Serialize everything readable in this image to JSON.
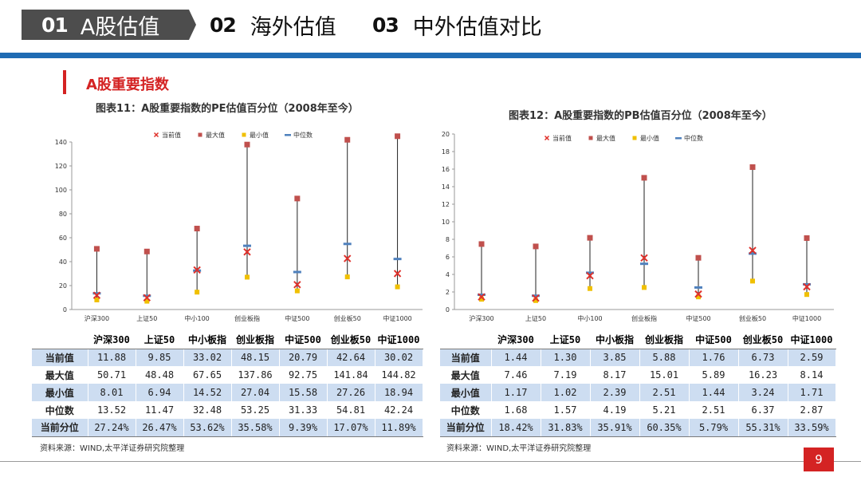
{
  "nav": {
    "items": [
      {
        "num": "01",
        "label": "A股估值"
      },
      {
        "num": "02",
        "label": "海外估值"
      },
      {
        "num": "03",
        "label": "中外估值对比"
      }
    ]
  },
  "section": {
    "title": "A股重要指数"
  },
  "colors": {
    "accent_red": "#d42323",
    "rule_blue": "#1f6bb3",
    "current": "#e0312b",
    "max": "#c0504d",
    "min": "#f0c000",
    "median": "#4f81bd",
    "band": "#cdddf1"
  },
  "legend": [
    "当前值",
    "最大值",
    "最小值",
    "中位数"
  ],
  "row_labels": [
    "当前值",
    "最大值",
    "最小值",
    "中位数",
    "当前分位"
  ],
  "pe": {
    "title": "图表11：A股重要指数的PE估值百分位（2008年至今）",
    "source": "资料来源：WIND,太平洋证券研究院整理",
    "axis_categories": [
      "沪深300",
      "上证50",
      "中小100",
      "创业板指",
      "中证500",
      "创业板50",
      "中证1000"
    ],
    "table_headers": [
      "沪深300",
      "上证50",
      "中小板指",
      "创业板指",
      "中证500",
      "创业板50",
      "中证1000"
    ],
    "table_rows": [
      [
        "11.88",
        "9.85",
        "33.02",
        "48.15",
        "20.79",
        "42.64",
        "30.02"
      ],
      [
        "50.71",
        "48.48",
        "67.65",
        "137.86",
        "92.75",
        "141.84",
        "144.82"
      ],
      [
        "8.01",
        "6.94",
        "14.52",
        "27.04",
        "15.58",
        "27.26",
        "18.94"
      ],
      [
        "13.52",
        "11.47",
        "32.48",
        "53.25",
        "31.33",
        "54.81",
        "42.24"
      ],
      [
        "27.24%",
        "26.47%",
        "53.62%",
        "35.58%",
        "9.39%",
        "17.07%",
        "11.89%"
      ]
    ]
  },
  "pb": {
    "title": "图表12：A股重要指数的PB估值百分位（2008年至今）",
    "source": "资料来源：WIND,太平洋证券研究院整理",
    "axis_categories": [
      "沪深300",
      "上证50",
      "中小100",
      "创业板指",
      "中证500",
      "创业板50",
      "中证1000"
    ],
    "table_headers": [
      "沪深300",
      "上证50",
      "中小板指",
      "创业板指",
      "中证500",
      "创业板50",
      "中证1000"
    ],
    "table_rows": [
      [
        "1.44",
        "1.30",
        "3.85",
        "5.88",
        "1.76",
        "6.73",
        "2.59"
      ],
      [
        "7.46",
        "7.19",
        "8.17",
        "15.01",
        "5.89",
        "16.23",
        "8.14"
      ],
      [
        "1.17",
        "1.02",
        "2.39",
        "2.51",
        "1.44",
        "3.24",
        "1.71"
      ],
      [
        "1.68",
        "1.57",
        "4.19",
        "5.21",
        "2.51",
        "6.37",
        "2.87"
      ],
      [
        "18.42%",
        "31.83%",
        "35.91%",
        "60.35%",
        "5.79%",
        "55.31%",
        "33.59%"
      ]
    ]
  },
  "chart_data": [
    {
      "type": "scatter",
      "title": "图表11：A股重要指数的PE估值百分位（2008年至今）",
      "categories": [
        "沪深300",
        "上证50",
        "中小100",
        "创业板指",
        "中证500",
        "创业板50",
        "中证1000"
      ],
      "series": [
        {
          "name": "当前值",
          "values": [
            11.88,
            9.85,
            33.02,
            48.15,
            20.79,
            42.64,
            30.02
          ]
        },
        {
          "name": "最大值",
          "values": [
            50.71,
            48.48,
            67.65,
            137.86,
            92.75,
            141.84,
            144.82
          ]
        },
        {
          "name": "最小值",
          "values": [
            8.01,
            6.94,
            14.52,
            27.04,
            15.58,
            27.26,
            18.94
          ]
        },
        {
          "name": "中位数",
          "values": [
            13.52,
            11.47,
            32.48,
            53.25,
            31.33,
            54.81,
            42.24
          ]
        }
      ],
      "ylim": [
        0,
        140
      ],
      "yticks": [
        0,
        20,
        40,
        60,
        80,
        100,
        120,
        140
      ],
      "legend_position": "top",
      "grid": false
    },
    {
      "type": "scatter",
      "title": "图表12：A股重要指数的PB估值百分位（2008年至今）",
      "categories": [
        "沪深300",
        "上证50",
        "中小100",
        "创业板指",
        "中证500",
        "创业板50",
        "中证1000"
      ],
      "series": [
        {
          "name": "当前值",
          "values": [
            1.44,
            1.3,
            3.85,
            5.88,
            1.76,
            6.73,
            2.59
          ]
        },
        {
          "name": "最大值",
          "values": [
            7.46,
            7.19,
            8.17,
            15.01,
            5.89,
            16.23,
            8.14
          ]
        },
        {
          "name": "最小值",
          "values": [
            1.17,
            1.02,
            2.39,
            2.51,
            1.44,
            3.24,
            1.71
          ]
        },
        {
          "name": "中位数",
          "values": [
            1.68,
            1.57,
            4.19,
            5.21,
            2.51,
            6.37,
            2.87
          ]
        }
      ],
      "ylim": [
        0,
        20
      ],
      "yticks": [
        0,
        2,
        4,
        6,
        8,
        10,
        12,
        14,
        16,
        18,
        20
      ],
      "legend_position": "top",
      "grid": false
    }
  ],
  "page": {
    "number": "9"
  }
}
